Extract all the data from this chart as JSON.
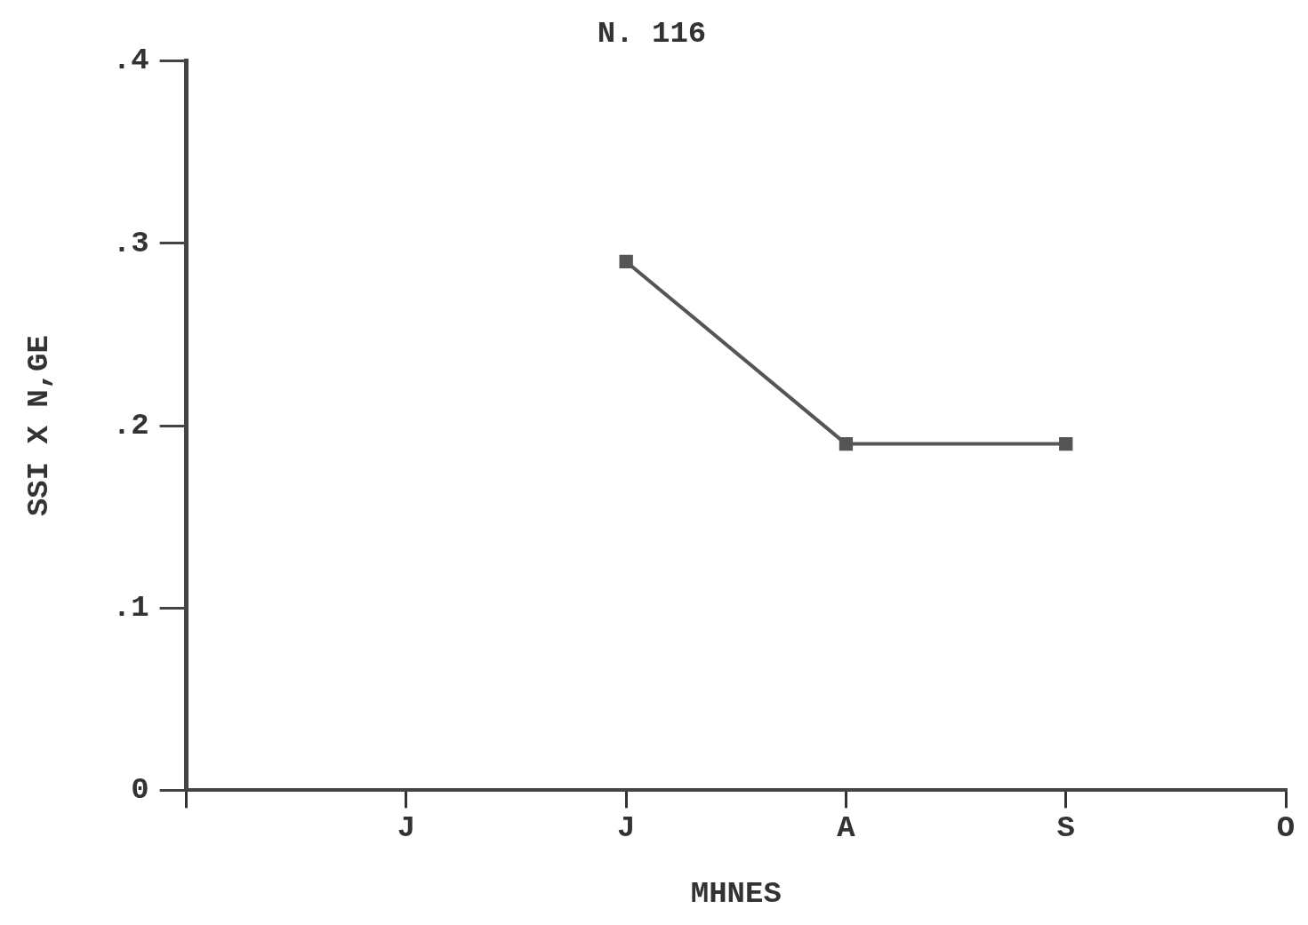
{
  "chart_data": {
    "type": "line",
    "title": "N. 116",
    "xlabel": "MHNES",
    "ylabel": "SSI X N,GE",
    "categories": [
      null,
      "J",
      "J",
      "A",
      "S",
      "O"
    ],
    "series": [
      {
        "color": "#555555",
        "values": [
          null,
          null,
          0.29,
          0.19,
          0.19,
          null
        ]
      }
    ],
    "ylim": [
      0,
      0.4
    ],
    "yticks": [
      {
        "value": 0,
        "label": "0"
      },
      {
        "value": 0.1,
        "label": ".1"
      },
      {
        "value": 0.2,
        "label": ".2"
      },
      {
        "value": 0.3,
        "label": ".3"
      },
      {
        "value": 0.4,
        "label": ".4"
      }
    ],
    "grid": false,
    "legend": false,
    "marker": "square",
    "line_style": "solid"
  }
}
